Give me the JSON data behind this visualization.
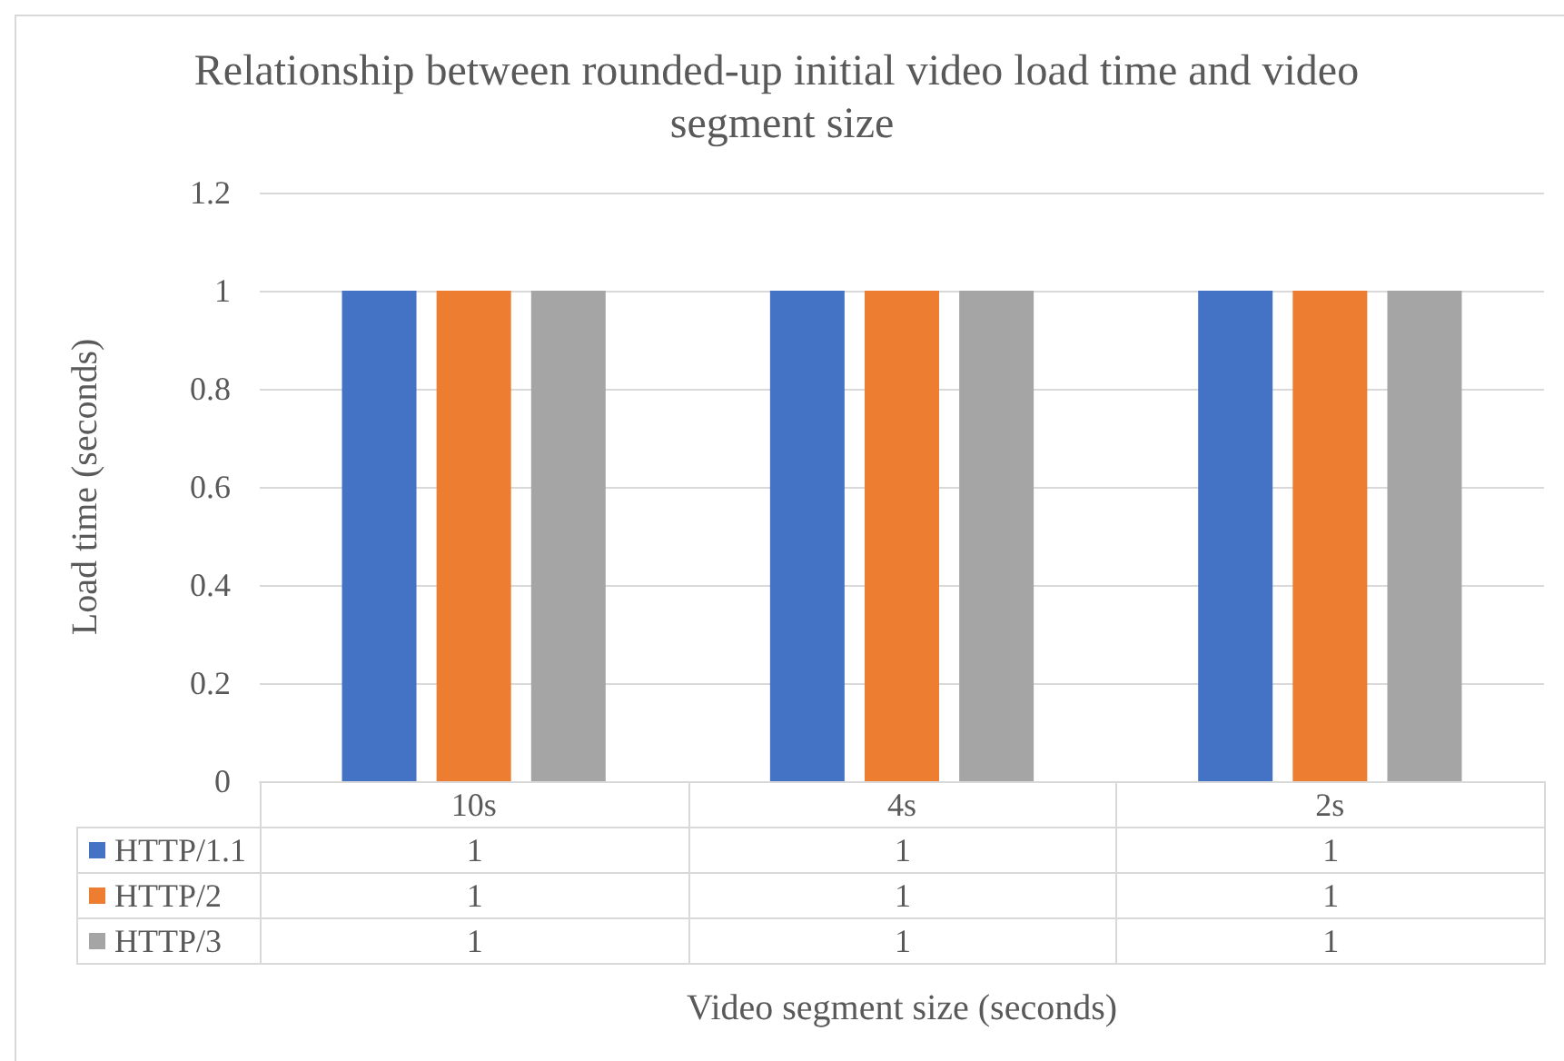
{
  "chart_data": {
    "type": "bar",
    "title": "Relationship between rounded-up initial video load time and video segment size",
    "xlabel": "Video segment size (seconds)",
    "ylabel": "Load time (seconds)",
    "categories": [
      "10s",
      "4s",
      "2s"
    ],
    "series": [
      {
        "name": "HTTP/1.1",
        "color": "#4472c4",
        "values": [
          1,
          1,
          1
        ]
      },
      {
        "name": "HTTP/2",
        "color": "#ed7d31",
        "values": [
          1,
          1,
          1
        ]
      },
      {
        "name": "HTTP/3",
        "color": "#a5a5a5",
        "values": [
          1,
          1,
          1
        ]
      }
    ],
    "ylim": [
      0,
      1.2
    ],
    "yticks": [
      0,
      0.2,
      0.4,
      0.6,
      0.8,
      1,
      1.2
    ],
    "grid": "y",
    "legend": "bottom",
    "data_labels": true
  }
}
